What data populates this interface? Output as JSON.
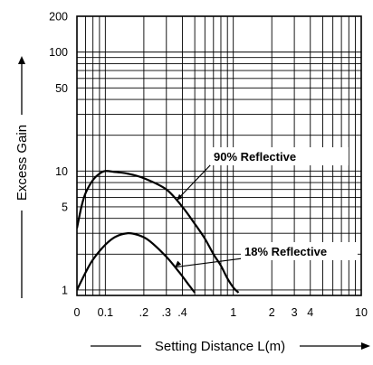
{
  "chart_data": {
    "type": "line",
    "title": "",
    "xlabel": "Setting Distance L(m)",
    "ylabel": "Excess Gain",
    "xscale": "log",
    "yscale": "log",
    "xlim": [
      0.06,
      10
    ],
    "ylim": [
      0.9,
      200
    ],
    "x_ticks": [
      {
        "value": 0.06,
        "label": "0"
      },
      {
        "value": 0.1,
        "label": "0.1"
      },
      {
        "value": 0.2,
        "label": ".2"
      },
      {
        "value": 0.3,
        "label": ".3"
      },
      {
        "value": 0.4,
        "label": ".4"
      },
      {
        "value": 1,
        "label": "1"
      },
      {
        "value": 2,
        "label": "2"
      },
      {
        "value": 3,
        "label": "3"
      },
      {
        "value": 4,
        "label": "4"
      },
      {
        "value": 10,
        "label": "10"
      }
    ],
    "y_ticks": [
      {
        "value": 1,
        "label": "1"
      },
      {
        "value": 5,
        "label": "5"
      },
      {
        "value": 10,
        "label": "10"
      },
      {
        "value": 50,
        "label": "50"
      },
      {
        "value": 100,
        "label": "100"
      },
      {
        "value": 200,
        "label": "200"
      }
    ],
    "grid": true,
    "legend": "none",
    "series": [
      {
        "name": "90% Reflective",
        "color": "#000000",
        "x": [
          0.06,
          0.065,
          0.07,
          0.08,
          0.09,
          0.1,
          0.12,
          0.15,
          0.2,
          0.3,
          0.4,
          0.5,
          0.6,
          0.7,
          0.8,
          0.9,
          1.0,
          1.1
        ],
        "y": [
          3.3,
          5.0,
          6.5,
          8.4,
          9.5,
          10.0,
          9.8,
          9.5,
          8.7,
          7.0,
          5.0,
          3.6,
          2.7,
          2.0,
          1.6,
          1.25,
          1.05,
          0.95
        ]
      },
      {
        "name": "18% Reflective",
        "color": "#000000",
        "x": [
          0.06,
          0.07,
          0.08,
          0.1,
          0.12,
          0.15,
          0.18,
          0.22,
          0.3,
          0.38,
          0.45,
          0.5
        ],
        "y": [
          1.0,
          1.4,
          1.8,
          2.4,
          2.8,
          3.0,
          2.9,
          2.6,
          1.9,
          1.4,
          1.1,
          0.95
        ]
      }
    ],
    "annotations": [
      {
        "text": "90% Reflective",
        "series": "90% Reflective",
        "at_x": 0.36
      },
      {
        "text": "18% Reflective",
        "series": "18% Reflective",
        "at_x": 0.35
      }
    ]
  }
}
